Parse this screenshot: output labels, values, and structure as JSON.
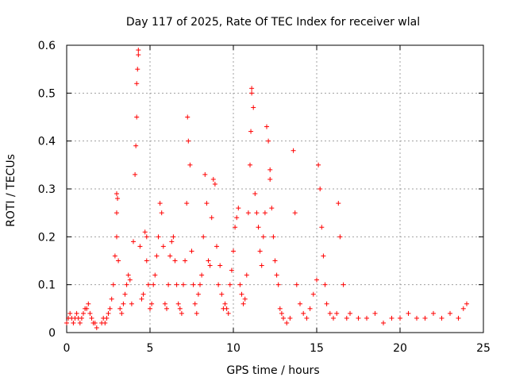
{
  "chart_data": {
    "type": "scatter",
    "title": "Day 117 of 2025, Rate Of TEC Index for receiver wlal",
    "xlabel": "GPS time / hours",
    "ylabel": "ROTI / TECUs",
    "xlim": [
      0,
      25
    ],
    "ylim": [
      0,
      0.6
    ],
    "xticks": [
      "0",
      "5",
      "10",
      "15",
      "20",
      "25"
    ],
    "yticks": [
      "0",
      "0.1",
      "0.2",
      "0.3",
      "0.4",
      "0.5",
      "0.6"
    ],
    "grid": true,
    "marker": "+",
    "color": "#ff0000",
    "series": [
      {
        "x": [
          0.0,
          0.1,
          0.2,
          0.3,
          0.4,
          0.5,
          0.6,
          0.7,
          0.8,
          0.9,
          1.0,
          1.1,
          1.2,
          1.3,
          1.4,
          1.5,
          1.6,
          1.7,
          1.8,
          2.1,
          2.2,
          2.3,
          2.4,
          2.5,
          2.6,
          2.7,
          2.8,
          2.9,
          3.0,
          3.0,
          3.0,
          3.05,
          3.1,
          3.2,
          3.3,
          3.4,
          3.5,
          3.6,
          3.7,
          3.8,
          3.9,
          4.0,
          4.1,
          4.15,
          4.2,
          4.2,
          4.25,
          4.3,
          4.3,
          4.4,
          4.5,
          4.6,
          4.7,
          4.8,
          4.8,
          4.9,
          5.0,
          5.1,
          5.2,
          5.3,
          5.4,
          5.5,
          5.6,
          5.7,
          5.8,
          5.9,
          6.0,
          6.1,
          6.2,
          6.3,
          6.4,
          6.5,
          6.6,
          6.7,
          6.8,
          6.9,
          7.0,
          7.1,
          7.2,
          7.25,
          7.3,
          7.4,
          7.5,
          7.6,
          7.7,
          7.8,
          7.9,
          8.0,
          8.1,
          8.2,
          8.3,
          8.4,
          8.5,
          8.6,
          8.7,
          8.8,
          8.9,
          9.0,
          9.1,
          9.2,
          9.3,
          9.4,
          9.5,
          9.6,
          9.7,
          9.8,
          9.9,
          10.0,
          10.1,
          10.2,
          10.3,
          10.4,
          10.5,
          10.6,
          10.7,
          10.8,
          10.9,
          11.0,
          11.05,
          11.1,
          11.1,
          11.2,
          11.3,
          11.4,
          11.5,
          11.6,
          11.7,
          11.8,
          11.9,
          12.0,
          12.1,
          12.2,
          12.2,
          12.3,
          12.4,
          12.5,
          12.6,
          12.7,
          12.8,
          12.9,
          13.0,
          13.2,
          13.4,
          13.6,
          13.7,
          13.8,
          14.0,
          14.2,
          14.4,
          14.6,
          14.8,
          15.0,
          15.1,
          15.2,
          15.3,
          15.4,
          15.5,
          15.6,
          15.8,
          16.0,
          16.2,
          16.3,
          16.4,
          16.6,
          16.8,
          17.0,
          17.5,
          18.0,
          18.5,
          19.0,
          19.5,
          20.0,
          20.5,
          21.0,
          21.5,
          22.0,
          22.5,
          23.0,
          23.5,
          23.8,
          24.0
        ],
        "y": [
          0.02,
          0.03,
          0.04,
          0.03,
          0.02,
          0.03,
          0.04,
          0.03,
          0.02,
          0.03,
          0.04,
          0.05,
          0.05,
          0.06,
          0.04,
          0.03,
          0.02,
          0.02,
          0.01,
          0.02,
          0.03,
          0.02,
          0.03,
          0.04,
          0.05,
          0.07,
          0.1,
          0.16,
          0.29,
          0.25,
          0.2,
          0.28,
          0.15,
          0.05,
          0.04,
          0.06,
          0.08,
          0.1,
          0.12,
          0.11,
          0.06,
          0.19,
          0.33,
          0.39,
          0.45,
          0.52,
          0.55,
          0.59,
          0.58,
          0.18,
          0.07,
          0.08,
          0.21,
          0.2,
          0.15,
          0.1,
          0.05,
          0.06,
          0.1,
          0.12,
          0.16,
          0.2,
          0.27,
          0.25,
          0.18,
          0.06,
          0.05,
          0.1,
          0.16,
          0.19,
          0.2,
          0.15,
          0.1,
          0.06,
          0.05,
          0.04,
          0.1,
          0.15,
          0.27,
          0.45,
          0.4,
          0.35,
          0.17,
          0.1,
          0.06,
          0.04,
          0.08,
          0.1,
          0.12,
          0.2,
          0.33,
          0.27,
          0.15,
          0.14,
          0.24,
          0.32,
          0.31,
          0.18,
          0.1,
          0.14,
          0.08,
          0.05,
          0.06,
          0.05,
          0.04,
          0.1,
          0.13,
          0.17,
          0.22,
          0.24,
          0.26,
          0.1,
          0.08,
          0.06,
          0.07,
          0.12,
          0.25,
          0.35,
          0.42,
          0.51,
          0.5,
          0.47,
          0.29,
          0.25,
          0.22,
          0.17,
          0.14,
          0.2,
          0.25,
          0.43,
          0.4,
          0.34,
          0.32,
          0.26,
          0.2,
          0.15,
          0.12,
          0.1,
          0.05,
          0.04,
          0.03,
          0.02,
          0.03,
          0.38,
          0.25,
          0.1,
          0.06,
          0.04,
          0.03,
          0.05,
          0.08,
          0.11,
          0.35,
          0.3,
          0.22,
          0.16,
          0.1,
          0.06,
          0.04,
          0.03,
          0.04,
          0.27,
          0.2,
          0.1,
          0.03,
          0.04,
          0.03,
          0.03,
          0.04,
          0.02,
          0.03,
          0.03,
          0.04,
          0.03,
          0.03,
          0.04,
          0.03,
          0.04,
          0.03,
          0.05,
          0.06
        ]
      }
    ]
  }
}
